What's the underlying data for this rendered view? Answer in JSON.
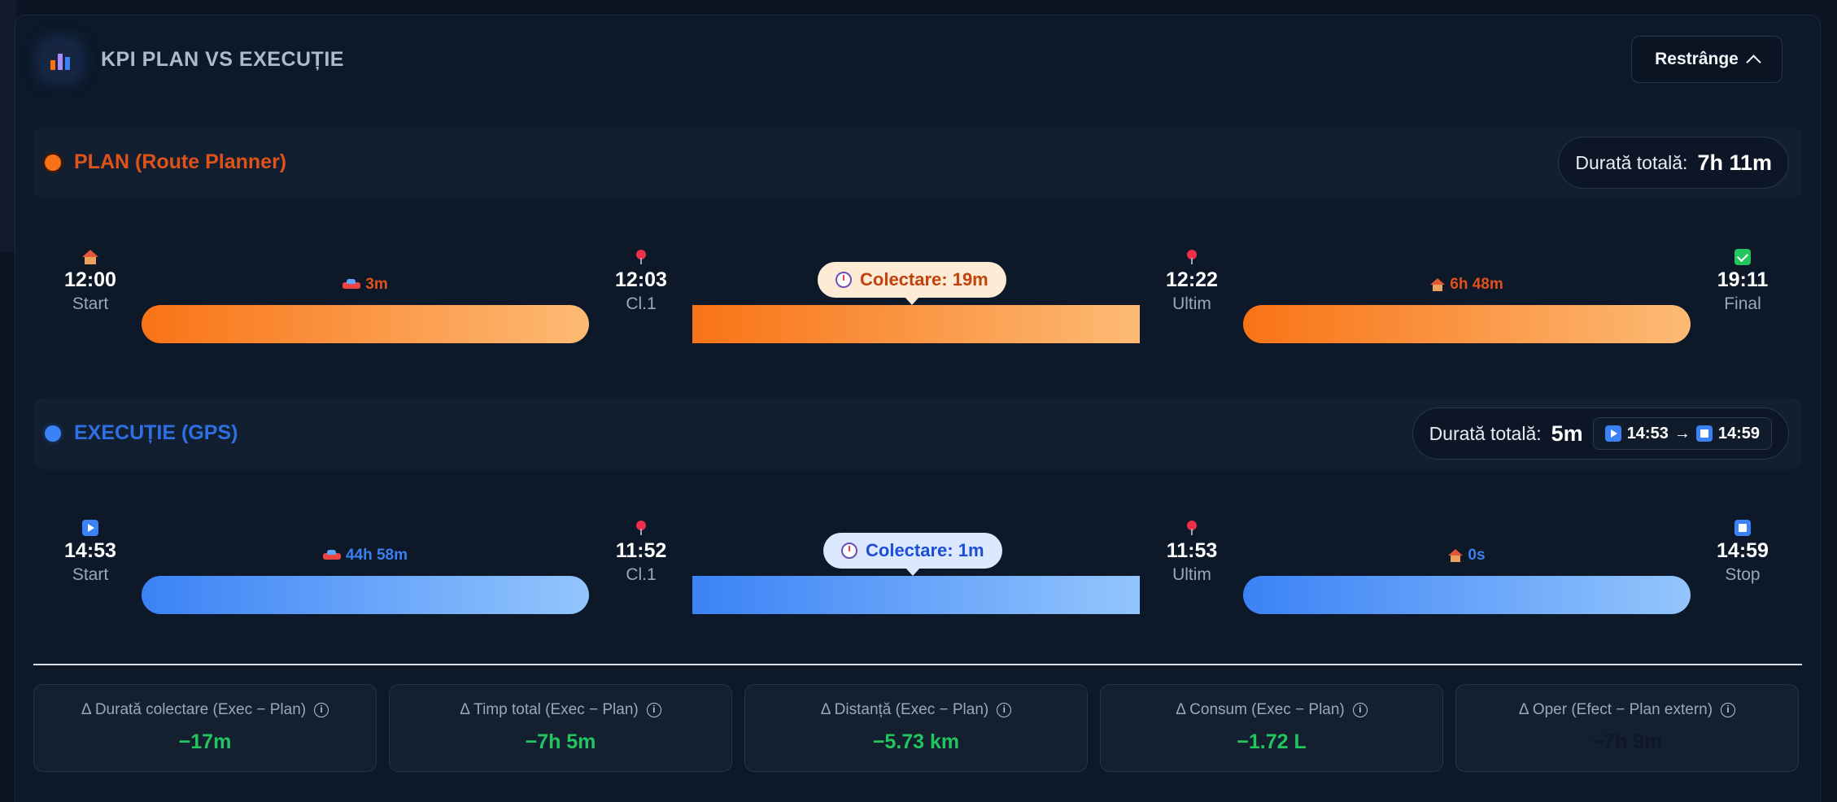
{
  "header": {
    "title": "KPI PLAN VS EXECUȚIE",
    "collapse_label": "Restrânge"
  },
  "plan": {
    "title": "PLAN (Route Planner)",
    "color": "#e0521a",
    "duration_label": "Durată totală:",
    "duration_value": "7h 11m",
    "nodes": [
      {
        "icon": "home-icon",
        "time": "12:00",
        "label": "Start"
      },
      {
        "icon": "pin-icon",
        "time": "12:03",
        "label": "Cl.1"
      },
      {
        "icon": "pin-icon",
        "time": "12:22",
        "label": "Ultim"
      },
      {
        "icon": "check-icon",
        "time": "19:11",
        "label": "Final"
      }
    ],
    "segments": [
      {
        "icon": "car-icon",
        "label": "3m"
      },
      {
        "icon": "timer-icon",
        "label": "Colectare: 19m"
      },
      {
        "icon": "home-icon",
        "label": "6h 48m"
      }
    ]
  },
  "execution": {
    "title": "EXECUȚIE (GPS)",
    "color": "#3b82f6",
    "duration_label": "Durată totală:",
    "duration_value": "5m",
    "start_time": "14:53",
    "arrow": "→",
    "stop_time": "14:59",
    "nodes": [
      {
        "icon": "play-icon",
        "time": "14:53",
        "label": "Start"
      },
      {
        "icon": "pin-icon",
        "time": "11:52",
        "label": "Cl.1"
      },
      {
        "icon": "pin-icon",
        "time": "11:53",
        "label": "Ultim"
      },
      {
        "icon": "stop-icon",
        "time": "14:59",
        "label": "Stop"
      }
    ],
    "segments": [
      {
        "icon": "car-icon",
        "label": "44h 58m"
      },
      {
        "icon": "timer-icon",
        "label": "Colectare: 1m"
      },
      {
        "icon": "home-icon",
        "label": "0s"
      }
    ]
  },
  "kpis": [
    {
      "label": "Δ Durată colectare (Exec − Plan)",
      "value": "−17m",
      "color": "#22c55e"
    },
    {
      "label": "Δ Timp total (Exec − Plan)",
      "value": "−7h 5m",
      "color": "#22c55e"
    },
    {
      "label": "Δ Distanță (Exec − Plan)",
      "value": "−5.73 km",
      "color": "#22c55e"
    },
    {
      "label": "Δ Consum (Exec − Plan)",
      "value": "−1.72 L",
      "color": "#22c55e"
    },
    {
      "label": "Δ Oper (Efect − Plan extern)",
      "value": "−7h 9m",
      "color": "#0f172a"
    }
  ],
  "info_glyph": "i"
}
